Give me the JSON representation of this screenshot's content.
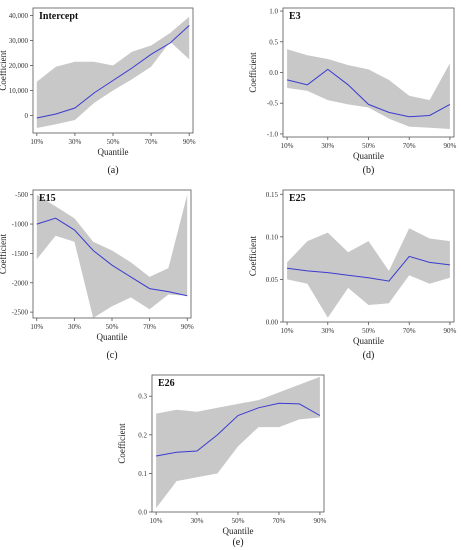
{
  "chart_data": [
    {
      "type": "area",
      "panel_title": "Intercept",
      "caption": "(a)",
      "xlabel": "Quantile",
      "ylabel": "Coefficient",
      "x": [
        0.1,
        0.2,
        0.3,
        0.4,
        0.5,
        0.6,
        0.7,
        0.8,
        0.9
      ],
      "xticks": [
        "10%",
        "30%",
        "50%",
        "70%",
        "90%"
      ],
      "xtick_values": [
        0.1,
        0.3,
        0.5,
        0.7,
        0.9
      ],
      "yticks": [
        "0",
        "10,000",
        "20,000",
        "30,000",
        "40,000"
      ],
      "ytick_values": [
        0,
        10000,
        20000,
        30000,
        40000
      ],
      "ylim": [
        -7000,
        43000
      ],
      "series": [
        {
          "values": [
            -1000,
            600,
            3000,
            9000,
            14000,
            19000,
            24500,
            29000,
            36000
          ],
          "lower": [
            -5000,
            -3500,
            -1800,
            5000,
            10000,
            14500,
            19500,
            29500,
            22500
          ],
          "upper": [
            13500,
            19500,
            21500,
            21500,
            20000,
            25500,
            28000,
            33000,
            39500
          ]
        }
      ]
    },
    {
      "type": "area",
      "panel_title": "E3",
      "caption": "(b)",
      "xlabel": "Quantile",
      "ylabel": "Coefficient",
      "x": [
        0.1,
        0.2,
        0.3,
        0.4,
        0.5,
        0.6,
        0.7,
        0.8,
        0.9
      ],
      "xticks": [
        "10%",
        "30%",
        "50%",
        "70%",
        "90%"
      ],
      "xtick_values": [
        0.1,
        0.3,
        0.5,
        0.7,
        0.9
      ],
      "yticks": [
        "-1.0",
        "-0.5",
        "0.0",
        "0.5",
        "1.0"
      ],
      "ytick_values": [
        -1.0,
        -0.5,
        0.0,
        0.5,
        1.0
      ],
      "ylim": [
        -1.05,
        1.05
      ],
      "series": [
        {
          "values": [
            -0.12,
            -0.2,
            0.05,
            -0.2,
            -0.52,
            -0.65,
            -0.72,
            -0.7,
            -0.52
          ],
          "lower": [
            -0.25,
            -0.3,
            -0.45,
            -0.52,
            -0.57,
            -0.75,
            -0.88,
            -0.9,
            -0.92
          ],
          "upper": [
            0.38,
            0.28,
            0.22,
            0.12,
            0.05,
            -0.12,
            -0.38,
            -0.45,
            0.15
          ]
        }
      ]
    },
    {
      "type": "area",
      "panel_title": "E15",
      "caption": "(c)",
      "xlabel": "Quantile",
      "ylabel": "Coefficient",
      "x": [
        0.1,
        0.2,
        0.3,
        0.4,
        0.5,
        0.6,
        0.7,
        0.8,
        0.9
      ],
      "xticks": [
        "10%",
        "30%",
        "50%",
        "70%",
        "90%"
      ],
      "xtick_values": [
        0.1,
        0.3,
        0.5,
        0.7,
        0.9
      ],
      "yticks": [
        "-2500",
        "-2000",
        "-1500",
        "-1000",
        "-500"
      ],
      "ytick_values": [
        -2500,
        -2000,
        -1500,
        -1000,
        -500
      ],
      "ylim": [
        -2600,
        -420
      ],
      "series": [
        {
          "values": [
            -1000,
            -900,
            -1100,
            -1450,
            -1700,
            -1900,
            -2100,
            -2150,
            -2220
          ],
          "lower": [
            -1600,
            -1200,
            -1300,
            -2600,
            -2400,
            -2250,
            -2450,
            -2200,
            -2220
          ],
          "upper": [
            -500,
            -700,
            -900,
            -1300,
            -1450,
            -1650,
            -1900,
            -1750,
            -500
          ]
        }
      ]
    },
    {
      "type": "area",
      "panel_title": "E25",
      "caption": "(d)",
      "xlabel": "Quantile",
      "ylabel": "Coefficient",
      "x": [
        0.1,
        0.2,
        0.3,
        0.4,
        0.5,
        0.6,
        0.7,
        0.8,
        0.9
      ],
      "xticks": [
        "10%",
        "30%",
        "50%",
        "70%",
        "90%"
      ],
      "xtick_values": [
        0.1,
        0.3,
        0.5,
        0.7,
        0.9
      ],
      "yticks": [
        "0.00",
        "0.05",
        "0.10",
        "0.15"
      ],
      "ytick_values": [
        0.0,
        0.05,
        0.1,
        0.15
      ],
      "ylim": [
        0.0,
        0.155
      ],
      "series": [
        {
          "values": [
            0.063,
            0.06,
            0.058,
            0.055,
            0.052,
            0.048,
            0.077,
            0.07,
            0.067
          ],
          "lower": [
            0.05,
            0.045,
            0.005,
            0.04,
            0.02,
            0.022,
            0.055,
            0.045,
            0.052
          ],
          "upper": [
            0.07,
            0.095,
            0.105,
            0.082,
            0.095,
            0.06,
            0.11,
            0.098,
            0.095
          ]
        }
      ]
    },
    {
      "type": "area",
      "panel_title": "E26",
      "caption": "(e)",
      "xlabel": "Quantile",
      "ylabel": "Coefficient",
      "x": [
        0.1,
        0.2,
        0.3,
        0.4,
        0.5,
        0.6,
        0.7,
        0.8,
        0.9
      ],
      "xticks": [
        "10%",
        "30%",
        "50%",
        "70%",
        "90%"
      ],
      "xtick_values": [
        0.1,
        0.3,
        0.5,
        0.7,
        0.9
      ],
      "yticks": [
        "0.0",
        "0.1",
        "0.2",
        "0.3"
      ],
      "ytick_values": [
        0.0,
        0.1,
        0.2,
        0.3
      ],
      "ylim": [
        0.0,
        0.355
      ],
      "series": [
        {
          "values": [
            0.145,
            0.155,
            0.158,
            0.2,
            0.25,
            0.27,
            0.282,
            0.28,
            0.25
          ],
          "lower": [
            0.01,
            0.08,
            0.09,
            0.1,
            0.17,
            0.22,
            0.22,
            0.24,
            0.245
          ],
          "upper": [
            0.255,
            0.265,
            0.26,
            0.27,
            0.28,
            0.29,
            0.31,
            0.33,
            0.35
          ]
        }
      ]
    }
  ],
  "colors": {
    "band": "#c8c8c8",
    "line": "#3b3bd1",
    "axis": "#555555"
  }
}
